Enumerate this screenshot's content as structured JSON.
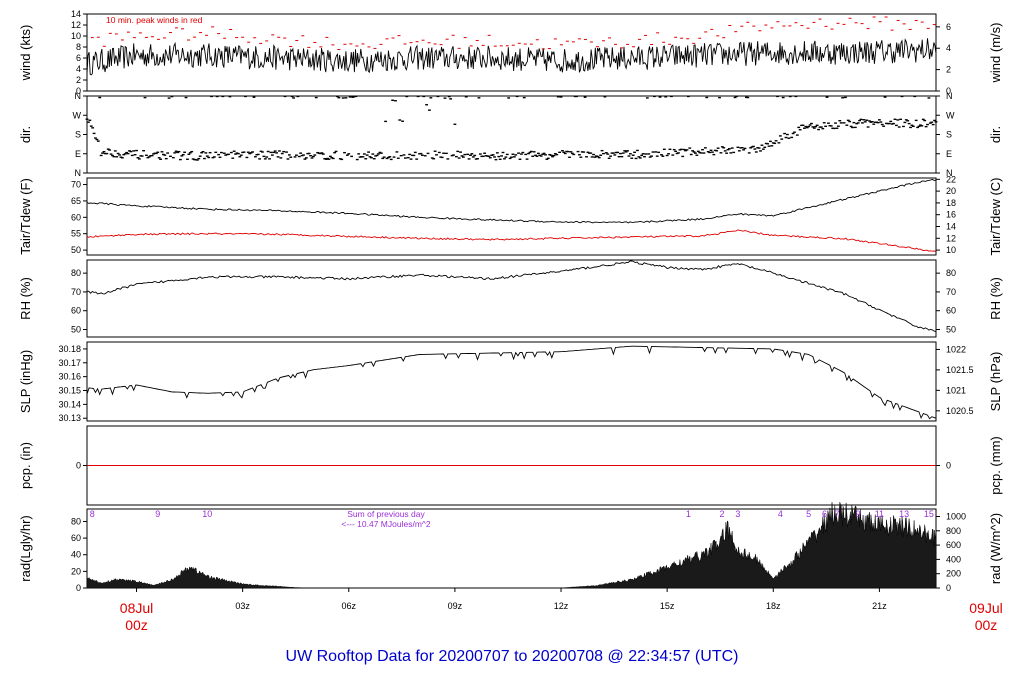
{
  "title": "UW Rooftop Data for 20200707  to  20200708 @ 22:34:57  (UTC)",
  "colors": {
    "peak": "#e00000",
    "axis_date": "#e00000",
    "title": "#0000cc",
    "annotation": "#9b30d8",
    "dewpoint": "#e00000"
  },
  "time_axis": {
    "start_label": {
      "date": "08Jul",
      "time": "00z"
    },
    "end_label": {
      "date": "09Jul",
      "time": "00z"
    },
    "ticks": [
      "03z",
      "06z",
      "09z",
      "12z",
      "15z",
      "18z",
      "21z"
    ]
  },
  "chart_data": [
    {
      "type": "line",
      "panel": "wind",
      "ylabel_left": "wind (kts)",
      "ylabel_right": "wind (m/s)",
      "yticks_left": [
        "0",
        "2",
        "4",
        "6",
        "8",
        "10",
        "12",
        "14"
      ],
      "yticks_right": [
        "0",
        "2",
        "4",
        "6"
      ],
      "ylim": [
        0,
        14
      ],
      "annotation": "10 min. peak winds in red",
      "series": [
        {
          "name": "wind speed",
          "x_hours": [
            -1.4,
            0,
            2,
            4,
            6,
            8,
            10,
            12,
            14,
            16,
            18,
            20,
            22.6
          ],
          "values": [
            5,
            6.5,
            6.5,
            6,
            5.5,
            6,
            6,
            5.5,
            6,
            6.5,
            7,
            7,
            7.5
          ]
        },
        {
          "name": "10 min. peak winds",
          "x_hours": [
            -1.4,
            0,
            2,
            4,
            6,
            8,
            10,
            12,
            14,
            16,
            18,
            20,
            22.6
          ],
          "values": [
            9,
            10,
            10.5,
            9.5,
            8.5,
            9,
            9,
            8.5,
            9,
            10,
            12,
            12.5,
            12
          ]
        }
      ]
    },
    {
      "type": "scatter",
      "panel": "dir",
      "ylabel_left": "dir.",
      "ylabel_right": "dir.",
      "yticks": [
        "N",
        "E",
        "S",
        "W",
        "N"
      ],
      "ylim": [
        0,
        360
      ],
      "series": [
        {
          "name": "direction",
          "x_hours": [
            -1.4,
            -1,
            0,
            2,
            4,
            6,
            8,
            10,
            12,
            14,
            16,
            17.5,
            19,
            21,
            22.6
          ],
          "values": [
            265,
            100,
            85,
            80,
            85,
            80,
            85,
            80,
            85,
            85,
            100,
            110,
            220,
            235,
            230
          ]
        }
      ]
    },
    {
      "type": "line",
      "panel": "temperature",
      "ylabel_left": "Tair/Tdew (F)",
      "ylabel_right": "Tair/Tdew (C)",
      "yticks_left": [
        "50",
        "55",
        "60",
        "65",
        "70"
      ],
      "yticks_right": [
        "10",
        "12",
        "14",
        "16",
        "18",
        "20",
        "22"
      ],
      "ylim": [
        48.5,
        72
      ],
      "series": [
        {
          "name": "Tair",
          "x_hours": [
            -1.4,
            0,
            2,
            4,
            6,
            8,
            10,
            12,
            14,
            16,
            17,
            18,
            20,
            22,
            22.6
          ],
          "values": [
            64.5,
            63.5,
            62.5,
            62,
            61.2,
            60,
            59.2,
            58.6,
            58.4,
            59.5,
            61,
            60.5,
            65.5,
            70.5,
            71.5
          ]
        },
        {
          "name": "Tdew",
          "x_hours": [
            -1.4,
            0,
            2,
            4,
            6,
            8,
            10,
            12,
            14,
            16,
            17,
            18,
            20,
            22,
            22.6
          ],
          "values": [
            54,
            54.8,
            55,
            54.8,
            54.2,
            53.6,
            53.2,
            53.6,
            54,
            54.3,
            56,
            54.5,
            53.5,
            50.5,
            49.5
          ]
        }
      ]
    },
    {
      "type": "line",
      "panel": "rh",
      "ylabel_left": "RH (%)",
      "ylabel_right": "RH (%)",
      "yticks": [
        "50",
        "60",
        "70",
        "80"
      ],
      "ylim": [
        46,
        87
      ],
      "series": [
        {
          "name": "RH",
          "x_hours": [
            -1.4,
            -1,
            0,
            2,
            4,
            6,
            8,
            10,
            12,
            14,
            15,
            16,
            17,
            18,
            20,
            22,
            22.6
          ],
          "values": [
            70,
            69,
            74,
            78,
            78,
            77,
            79,
            77,
            81,
            86,
            83,
            82,
            85,
            80,
            69,
            52,
            49
          ]
        }
      ]
    },
    {
      "type": "line",
      "panel": "slp",
      "ylabel_left": "SLP (inHg)",
      "ylabel_right": "SLP (hPa)",
      "yticks_left": [
        "30.13",
        "30.14",
        "30.15",
        "30.16",
        "30.17",
        "30.18"
      ],
      "yticks_right": [
        "1020.5",
        "1021",
        "1021.5",
        "1022"
      ],
      "ylim": [
        30.128,
        30.185
      ],
      "series": [
        {
          "name": "SLP",
          "x_hours": [
            -1.4,
            -1,
            0,
            1,
            2,
            3,
            4,
            5,
            6,
            7,
            8,
            10,
            12,
            14,
            16,
            18,
            19,
            20,
            21,
            22.6
          ],
          "values": [
            30.152,
            30.151,
            30.154,
            30.149,
            30.148,
            30.149,
            30.159,
            30.165,
            30.168,
            30.172,
            30.176,
            30.177,
            30.178,
            30.182,
            30.181,
            30.18,
            30.176,
            30.163,
            30.145,
            30.13
          ]
        }
      ]
    },
    {
      "type": "line",
      "panel": "pcp",
      "ylabel_left": "pcp. (in)",
      "ylabel_right": "pcp. (mm)",
      "yticks_left": [
        "0"
      ],
      "yticks_right": [
        "0"
      ],
      "ylim": [
        -1,
        1
      ],
      "series": [
        {
          "name": "precipitation",
          "x_hours": [
            -1.4,
            22.6
          ],
          "values": [
            0,
            0
          ]
        }
      ]
    },
    {
      "type": "area",
      "panel": "rad",
      "ylabel_left": "rad(Lgly/hr)",
      "ylabel_right": "rad (W/m^2)",
      "yticks_left": [
        "0",
        "20",
        "40",
        "60",
        "80"
      ],
      "yticks_right": [
        "0",
        "200",
        "400",
        "600",
        "800",
        "1000"
      ],
      "ylim": [
        0,
        95
      ],
      "annotation_sum": "Sum of previous day",
      "annotation_value": "<--- 10.47 MJoules/m^2",
      "hour_labels": [
        {
          "text": "8",
          "x_hour": -1.25
        },
        {
          "text": "9",
          "x_hour": 0.6
        },
        {
          "text": "10",
          "x_hour": 2
        },
        {
          "text": "1",
          "x_hour": 15.6
        },
        {
          "text": "2",
          "x_hour": 16.55
        },
        {
          "text": "3",
          "x_hour": 17
        },
        {
          "text": "4",
          "x_hour": 18.2
        },
        {
          "text": "5",
          "x_hour": 19
        },
        {
          "text": "6",
          "x_hour": 19.45
        },
        {
          "text": "7",
          "x_hour": 19.8
        },
        {
          "text": "9",
          "x_hour": 20.4
        },
        {
          "text": "11",
          "x_hour": 21
        },
        {
          "text": "13",
          "x_hour": 21.7
        },
        {
          "text": "15",
          "x_hour": 22.4
        }
      ],
      "series": [
        {
          "name": "radiation",
          "x_hours": [
            -1.4,
            -1,
            -0.6,
            0,
            0.5,
            1,
            1.5,
            2,
            2.5,
            3,
            3.5,
            4,
            4.5,
            5,
            12,
            13,
            14,
            15,
            16,
            16.5,
            16.7,
            17,
            17.5,
            18,
            18.5,
            19,
            19.5,
            19.7,
            20,
            20.5,
            21,
            21.5,
            22,
            22.6
          ],
          "values": [
            12,
            6,
            10,
            8,
            3,
            10,
            25,
            14,
            9,
            5,
            3,
            2,
            0.5,
            0,
            0,
            3,
            10,
            25,
            40,
            55,
            72,
            45,
            35,
            12,
            30,
            55,
            80,
            90,
            88,
            82,
            75,
            75,
            70,
            60
          ]
        }
      ]
    }
  ]
}
